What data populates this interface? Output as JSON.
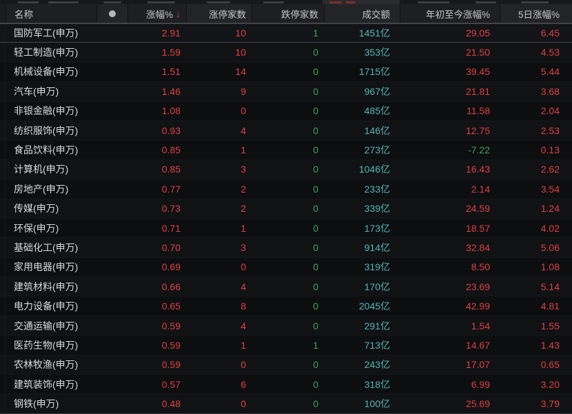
{
  "colors": {
    "up": "#e04042",
    "down": "#35a859",
    "turnover": "#55b6b8",
    "sort_arrow": "#d6492f"
  },
  "table": {
    "sort_arrow": "↓",
    "selected_index": 0,
    "columns": [
      {
        "key": "name",
        "label": "名称",
        "align": "left"
      },
      {
        "key": "dot",
        "label": "●",
        "align": "center"
      },
      {
        "key": "change",
        "label": "涨幅%",
        "align": "right",
        "sorted": "desc"
      },
      {
        "key": "limit_up",
        "label": "涨停家数",
        "align": "right"
      },
      {
        "key": "limit_down",
        "label": "跌停家数",
        "align": "right"
      },
      {
        "key": "turnover",
        "label": "成交额",
        "align": "right"
      },
      {
        "key": "ytd",
        "label": "年初至今涨幅%",
        "align": "right"
      },
      {
        "key": "five_day",
        "label": "5日涨幅%",
        "align": "right"
      }
    ],
    "rows": [
      {
        "name": "国防军工(申万)",
        "change": "2.91",
        "limit_up": "10",
        "limit_down": "1",
        "turnover": "1451亿",
        "ytd": "29.05",
        "five_day": "6.45"
      },
      {
        "name": "轻工制造(申万)",
        "change": "1.59",
        "limit_up": "10",
        "limit_down": "0",
        "turnover": "353亿",
        "ytd": "21.50",
        "five_day": "4.53"
      },
      {
        "name": "机械设备(申万)",
        "change": "1.51",
        "limit_up": "14",
        "limit_down": "0",
        "turnover": "1715亿",
        "ytd": "39.45",
        "five_day": "5.44"
      },
      {
        "name": "汽车(申万)",
        "change": "1.46",
        "limit_up": "9",
        "limit_down": "0",
        "turnover": "967亿",
        "ytd": "21.81",
        "five_day": "3.68"
      },
      {
        "name": "非银金融(申万)",
        "change": "1.08",
        "limit_up": "0",
        "limit_down": "0",
        "turnover": "485亿",
        "ytd": "11.58",
        "five_day": "2.04"
      },
      {
        "name": "纺织服饰(申万)",
        "change": "0.93",
        "limit_up": "4",
        "limit_down": "0",
        "turnover": "146亿",
        "ytd": "12.75",
        "five_day": "2.53"
      },
      {
        "name": "食品饮料(申万)",
        "change": "0.85",
        "limit_up": "1",
        "limit_down": "0",
        "turnover": "273亿",
        "ytd": "-7.22",
        "five_day": "0.13"
      },
      {
        "name": "计算机(申万)",
        "change": "0.85",
        "limit_up": "3",
        "limit_down": "0",
        "turnover": "1046亿",
        "ytd": "16.43",
        "five_day": "2.62"
      },
      {
        "name": "房地产(申万)",
        "change": "0.77",
        "limit_up": "2",
        "limit_down": "0",
        "turnover": "233亿",
        "ytd": "2.14",
        "five_day": "3.54"
      },
      {
        "name": "传媒(申万)",
        "change": "0.73",
        "limit_up": "2",
        "limit_down": "0",
        "turnover": "339亿",
        "ytd": "24.59",
        "five_day": "1.24"
      },
      {
        "name": "环保(申万)",
        "change": "0.71",
        "limit_up": "1",
        "limit_down": "0",
        "turnover": "173亿",
        "ytd": "18.57",
        "five_day": "4.02"
      },
      {
        "name": "基础化工(申万)",
        "change": "0.70",
        "limit_up": "3",
        "limit_down": "0",
        "turnover": "914亿",
        "ytd": "32.84",
        "five_day": "5.06"
      },
      {
        "name": "家用电器(申万)",
        "change": "0.69",
        "limit_up": "0",
        "limit_down": "0",
        "turnover": "319亿",
        "ytd": "8.50",
        "five_day": "1.08"
      },
      {
        "name": "建筑材料(申万)",
        "change": "0.66",
        "limit_up": "4",
        "limit_down": "0",
        "turnover": "170亿",
        "ytd": "23.69",
        "five_day": "5.14"
      },
      {
        "name": "电力设备(申万)",
        "change": "0.65",
        "limit_up": "8",
        "limit_down": "0",
        "turnover": "2045亿",
        "ytd": "42.99",
        "five_day": "4.81"
      },
      {
        "name": "交通运输(申万)",
        "change": "0.59",
        "limit_up": "4",
        "limit_down": "0",
        "turnover": "291亿",
        "ytd": "1.54",
        "five_day": "1.55"
      },
      {
        "name": "医药生物(申万)",
        "change": "0.59",
        "limit_up": "1",
        "limit_down": "1",
        "turnover": "713亿",
        "ytd": "14.67",
        "five_day": "1.43"
      },
      {
        "name": "农林牧渔(申万)",
        "change": "0.59",
        "limit_up": "0",
        "limit_down": "0",
        "turnover": "243亿",
        "ytd": "17.07",
        "five_day": "0.65"
      },
      {
        "name": "建筑装饰(申万)",
        "change": "0.57",
        "limit_up": "6",
        "limit_down": "0",
        "turnover": "318亿",
        "ytd": "6.99",
        "five_day": "3.20"
      },
      {
        "name": "钢铁(申万)",
        "change": "0.48",
        "limit_up": "0",
        "limit_down": "0",
        "turnover": "100亿",
        "ytd": "25.69",
        "five_day": "3.79"
      }
    ]
  }
}
